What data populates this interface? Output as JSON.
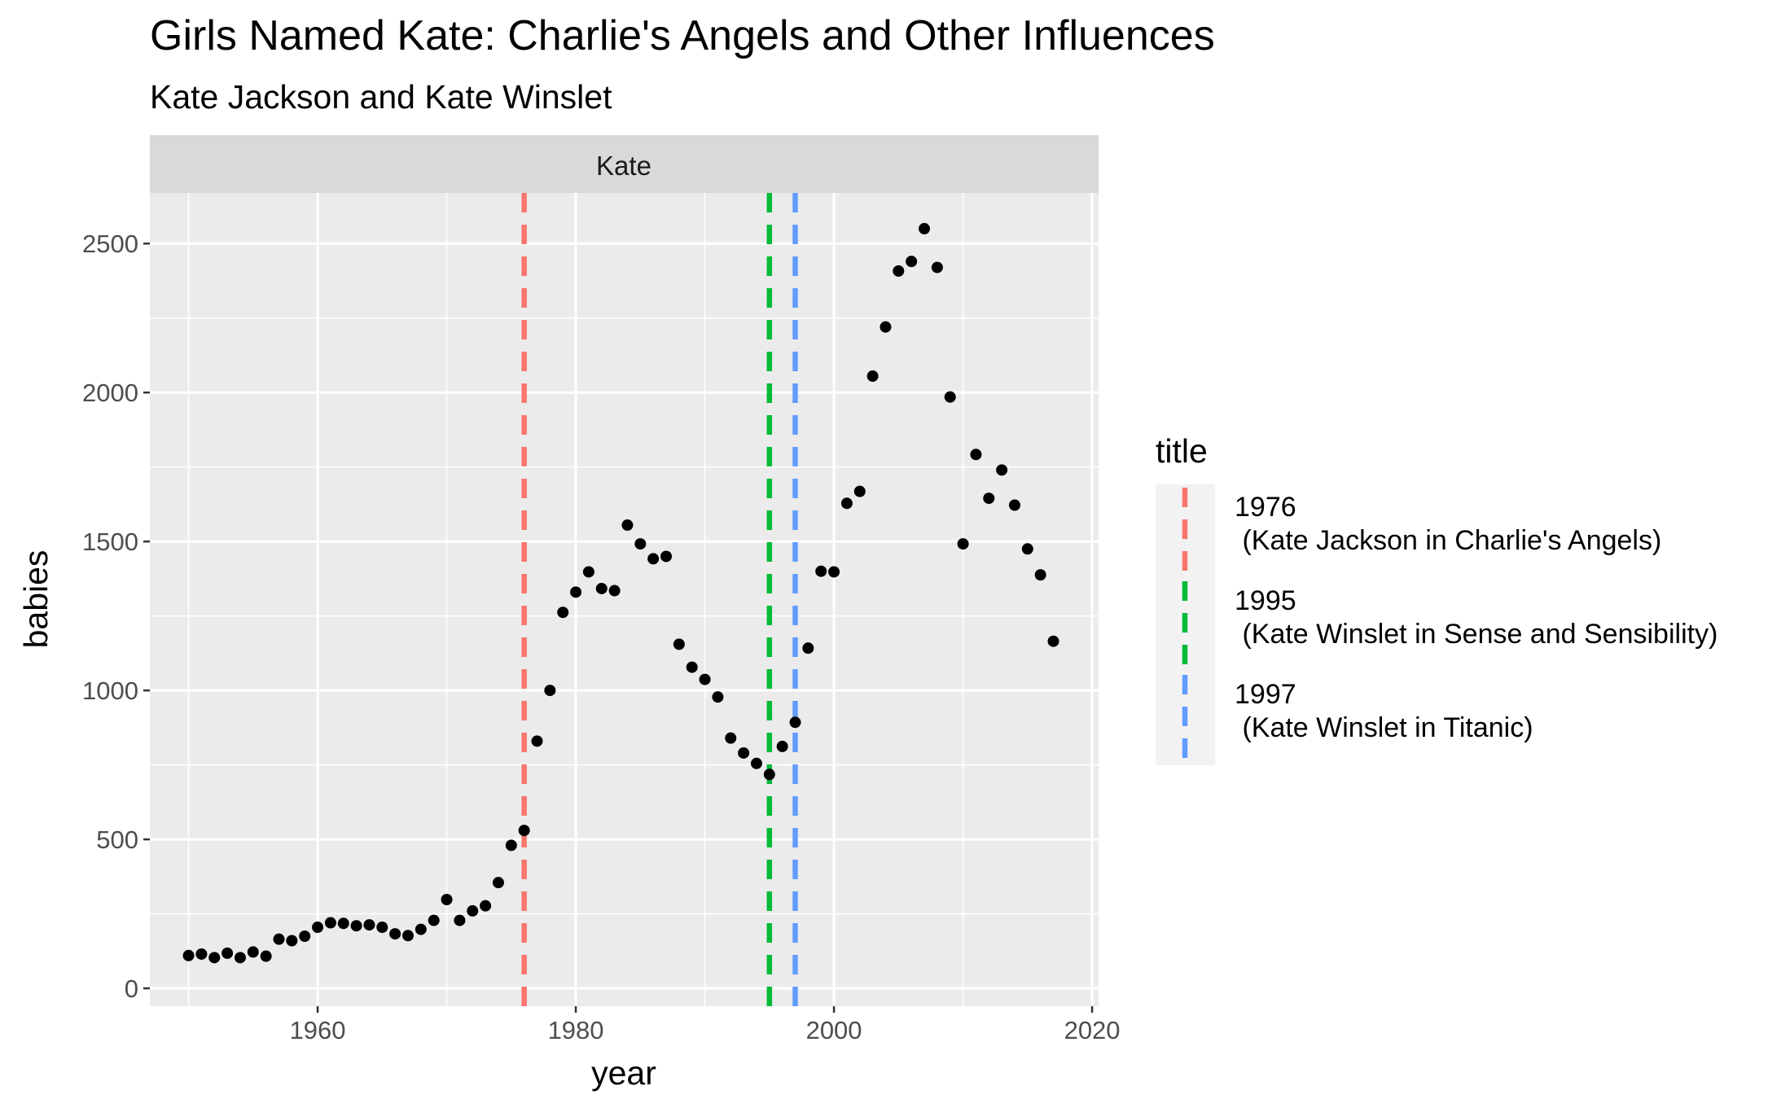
{
  "chart_data": {
    "type": "scatter",
    "title": "Girls Named Kate: Charlie's Angels and Other Influences",
    "subtitle": "Kate Jackson and Kate Winslet",
    "facet": "Kate",
    "xlabel": "year",
    "ylabel": "babies",
    "xlim": [
      1947,
      2020.5
    ],
    "ylim": [
      -60,
      2670
    ],
    "xticks": [
      1960,
      1980,
      2000,
      2020
    ],
    "yticks": [
      0,
      500,
      1000,
      1500,
      2000,
      2500
    ],
    "grid": true,
    "points": [
      {
        "x": 1950,
        "y": 110
      },
      {
        "x": 1951,
        "y": 115
      },
      {
        "x": 1952,
        "y": 103
      },
      {
        "x": 1953,
        "y": 118
      },
      {
        "x": 1954,
        "y": 103
      },
      {
        "x": 1955,
        "y": 122
      },
      {
        "x": 1956,
        "y": 108
      },
      {
        "x": 1957,
        "y": 165
      },
      {
        "x": 1958,
        "y": 160
      },
      {
        "x": 1959,
        "y": 175
      },
      {
        "x": 1960,
        "y": 205
      },
      {
        "x": 1961,
        "y": 220
      },
      {
        "x": 1962,
        "y": 218
      },
      {
        "x": 1963,
        "y": 210
      },
      {
        "x": 1964,
        "y": 213
      },
      {
        "x": 1965,
        "y": 205
      },
      {
        "x": 1966,
        "y": 183
      },
      {
        "x": 1967,
        "y": 177
      },
      {
        "x": 1968,
        "y": 198
      },
      {
        "x": 1969,
        "y": 228
      },
      {
        "x": 1970,
        "y": 298
      },
      {
        "x": 1971,
        "y": 228
      },
      {
        "x": 1972,
        "y": 260
      },
      {
        "x": 1973,
        "y": 277
      },
      {
        "x": 1974,
        "y": 355
      },
      {
        "x": 1975,
        "y": 480
      },
      {
        "x": 1976,
        "y": 530
      },
      {
        "x": 1977,
        "y": 830
      },
      {
        "x": 1978,
        "y": 1000
      },
      {
        "x": 1979,
        "y": 1262
      },
      {
        "x": 1980,
        "y": 1330
      },
      {
        "x": 1981,
        "y": 1398
      },
      {
        "x": 1982,
        "y": 1342
      },
      {
        "x": 1983,
        "y": 1335
      },
      {
        "x": 1984,
        "y": 1555
      },
      {
        "x": 1985,
        "y": 1492
      },
      {
        "x": 1986,
        "y": 1442
      },
      {
        "x": 1987,
        "y": 1450
      },
      {
        "x": 1988,
        "y": 1155
      },
      {
        "x": 1989,
        "y": 1078
      },
      {
        "x": 1990,
        "y": 1037
      },
      {
        "x": 1991,
        "y": 978
      },
      {
        "x": 1992,
        "y": 840
      },
      {
        "x": 1993,
        "y": 790
      },
      {
        "x": 1994,
        "y": 755
      },
      {
        "x": 1995,
        "y": 718
      },
      {
        "x": 1996,
        "y": 812
      },
      {
        "x": 1997,
        "y": 893
      },
      {
        "x": 1998,
        "y": 1142
      },
      {
        "x": 1999,
        "y": 1400
      },
      {
        "x": 2000,
        "y": 1398
      },
      {
        "x": 2001,
        "y": 1628
      },
      {
        "x": 2002,
        "y": 1668
      },
      {
        "x": 2003,
        "y": 2055
      },
      {
        "x": 2004,
        "y": 2220
      },
      {
        "x": 2005,
        "y": 2408
      },
      {
        "x": 2006,
        "y": 2440
      },
      {
        "x": 2007,
        "y": 2550
      },
      {
        "x": 2008,
        "y": 2420
      },
      {
        "x": 2009,
        "y": 1985
      },
      {
        "x": 2010,
        "y": 1492
      },
      {
        "x": 2011,
        "y": 1792
      },
      {
        "x": 2012,
        "y": 1645
      },
      {
        "x": 2013,
        "y": 1740
      },
      {
        "x": 2014,
        "y": 1622
      },
      {
        "x": 2015,
        "y": 1475
      },
      {
        "x": 2016,
        "y": 1388
      },
      {
        "x": 2017,
        "y": 1165
      }
    ],
    "vlines": [
      {
        "x": 1976,
        "color": "#F8766D",
        "label_year": "1976",
        "label_text": " (Kate Jackson in Charlie's Angels)"
      },
      {
        "x": 1995,
        "color": "#00BA38",
        "label_year": "1995",
        "label_text": " (Kate Winslet in Sense and Sensibility)"
      },
      {
        "x": 1997,
        "color": "#619CFF",
        "label_year": "1997",
        "label_text": " (Kate Winslet in Titanic)"
      }
    ],
    "legend": {
      "title": "title",
      "position": "right"
    }
  }
}
